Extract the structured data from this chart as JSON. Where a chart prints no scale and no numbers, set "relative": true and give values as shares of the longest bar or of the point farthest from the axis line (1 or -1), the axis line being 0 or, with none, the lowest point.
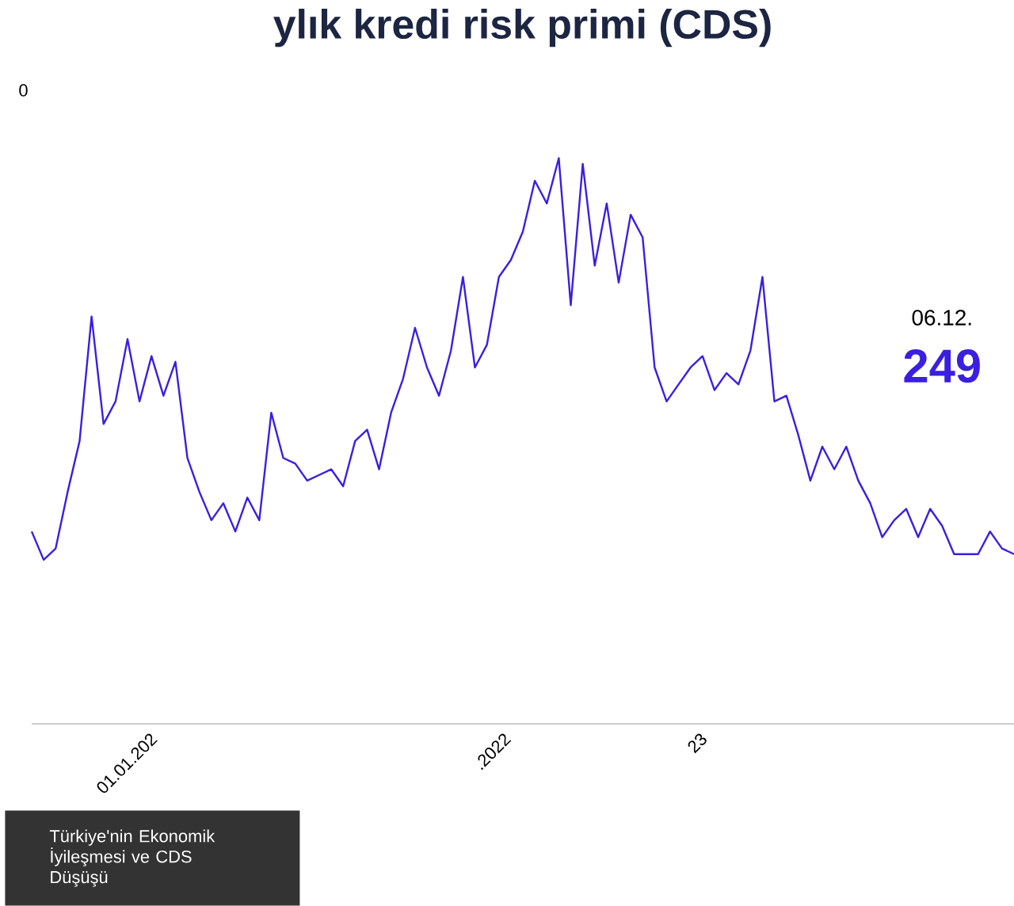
{
  "chart_data": {
    "type": "line",
    "relative": true,
    "title": "ylık kredi risk primi (CDS)",
    "categories": [
      null,
      null,
      null,
      null,
      null,
      null,
      null,
      null,
      null,
      null,
      null,
      null,
      null,
      null,
      null,
      null,
      null,
      null,
      null,
      null,
      null,
      null,
      null,
      null,
      null,
      null,
      null,
      null,
      null,
      null,
      null,
      null,
      null,
      null,
      null,
      null,
      null,
      null,
      null,
      null,
      null,
      null,
      null,
      null,
      null,
      null,
      null,
      null,
      null,
      null,
      null,
      null,
      null,
      null,
      null,
      null,
      null,
      null,
      null,
      null,
      null,
      null,
      null,
      null,
      null,
      null,
      null,
      null,
      null,
      null,
      null,
      null,
      null,
      null,
      null,
      null,
      null,
      null,
      null,
      null,
      null,
      null,
      null
    ],
    "series": [
      {
        "color": "#3a1fe0",
        "values": [
          0.34,
          0.29,
          0.31,
          0.41,
          0.5,
          0.72,
          0.53,
          0.57,
          0.68,
          0.57,
          0.65,
          0.58,
          0.64,
          0.47,
          0.41,
          0.36,
          0.39,
          0.34,
          0.4,
          0.36,
          0.55,
          0.47,
          0.46,
          0.43,
          0.44,
          0.45,
          0.42,
          0.5,
          0.52,
          0.45,
          0.55,
          0.61,
          0.7,
          0.63,
          0.58,
          0.66,
          0.79,
          0.63,
          0.67,
          0.79,
          0.82,
          0.87,
          0.96,
          0.92,
          1.0,
          0.74,
          0.99,
          0.81,
          0.92,
          0.78,
          0.9,
          0.86,
          0.63,
          0.57,
          0.6,
          0.63,
          0.65,
          0.59,
          0.62,
          0.6,
          0.66,
          0.79,
          0.57,
          0.58,
          0.51,
          0.43,
          0.49,
          0.45,
          0.49,
          0.43,
          0.39,
          0.33,
          0.36,
          0.38,
          0.33,
          0.38,
          0.35,
          0.3,
          0.3,
          0.3,
          0.34,
          0.31,
          0.3
        ]
      }
    ],
    "marker": "none",
    "line_style": "solid",
    "annotations": [
      "Türkiye'nin Ekonomik İyileşmesi ve CDS Düşüşü",
      "06.12.",
      "249",
      "0",
      "01.01.202",
      ".2022",
      "23"
    ]
  }
}
